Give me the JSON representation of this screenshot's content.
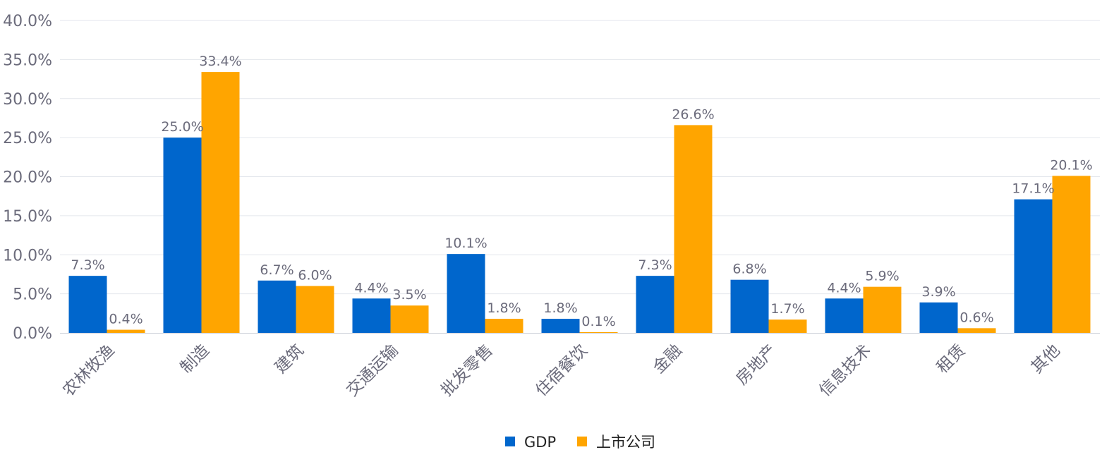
{
  "chart_data": {
    "type": "bar",
    "categories": [
      "农林牧渔",
      "制造",
      "建筑",
      "交通运输",
      "批发零售",
      "住宿餐饮",
      "金融",
      "房地产",
      "信息技术",
      "租赁",
      "其他"
    ],
    "series": [
      {
        "name": "GDP",
        "color": "#0066CC",
        "values": [
          7.3,
          25.0,
          6.7,
          4.4,
          10.1,
          1.8,
          7.3,
          6.8,
          4.4,
          3.9,
          17.1
        ]
      },
      {
        "name": "上市公司",
        "color": "#FFA500",
        "values": [
          0.4,
          33.4,
          6.0,
          3.5,
          1.8,
          0.1,
          26.6,
          1.7,
          5.9,
          0.6,
          20.1
        ]
      }
    ],
    "yticks": [
      "0.0%",
      "5.0%",
      "10.0%",
      "15.0%",
      "20.0%",
      "25.0%",
      "30.0%",
      "35.0%",
      "40.0%"
    ],
    "ylim": [
      0,
      40
    ],
    "yunit": "%",
    "grid": true,
    "legend": "bottom-center",
    "data_labels": true
  }
}
